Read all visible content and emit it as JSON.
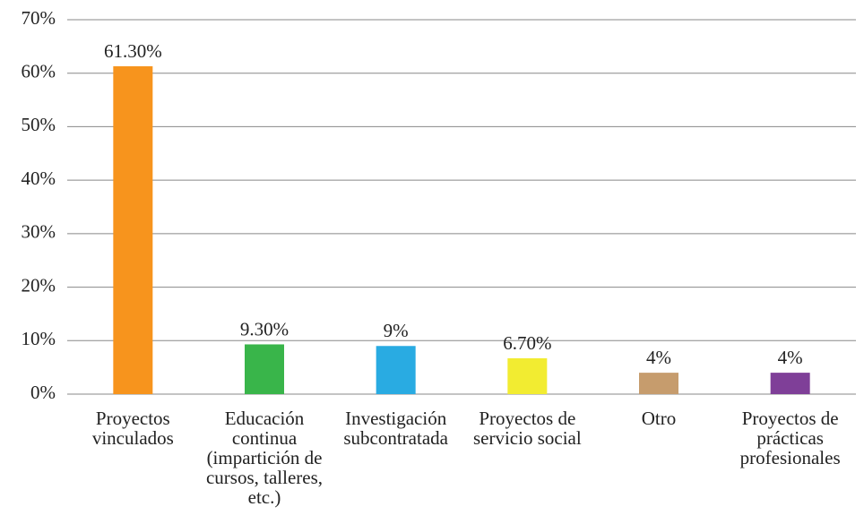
{
  "chart_data": {
    "type": "bar",
    "categories": [
      "Proyectos vinculados",
      "Educación continua (impartición de cursos, talleres, etc.)",
      "Investigación subcontratada",
      "Proyectos de servicio social",
      "Otro",
      "Proyectos de prácticas profesionales"
    ],
    "values": [
      61.3,
      9.3,
      9,
      6.7,
      4,
      4
    ],
    "value_labels": [
      "61.30%",
      "9.30%",
      "9%",
      "6.70%",
      "4%",
      "4%"
    ],
    "colors": [
      "#f7941d",
      "#39b54a",
      "#29abe2",
      "#f2ec31",
      "#c69c6d",
      "#7f3f98"
    ],
    "ylim": [
      0,
      70
    ],
    "yticks": [
      {
        "value": 0,
        "label": "0%"
      },
      {
        "value": 10,
        "label": "10%"
      },
      {
        "value": 20,
        "label": "20%"
      },
      {
        "value": 30,
        "label": "30%"
      },
      {
        "value": 40,
        "label": "40%"
      },
      {
        "value": 50,
        "label": "50%"
      },
      {
        "value": 60,
        "label": "60%"
      },
      {
        "value": 70,
        "label": "70%"
      }
    ],
    "grid": true
  }
}
